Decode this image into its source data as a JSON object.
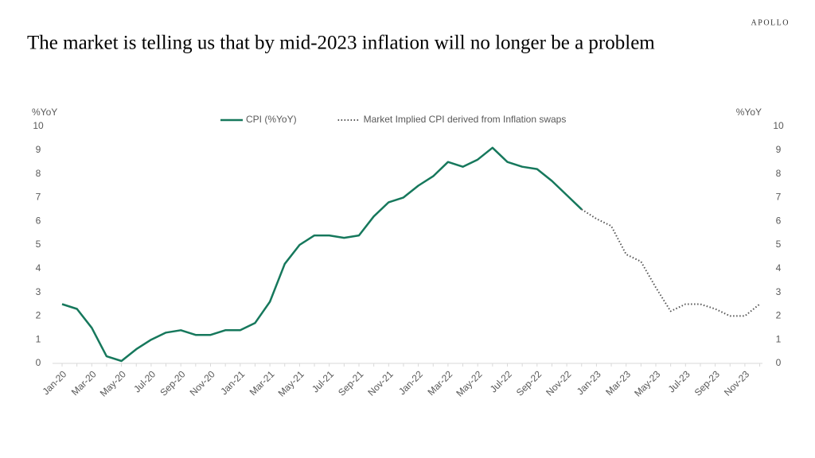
{
  "brand": "APOLLO",
  "chart_data": {
    "type": "line",
    "title": "The market is telling us that by mid-2023 inflation will no longer be a problem",
    "ylabel": "%YoY",
    "y2label": "%YoY",
    "categories": [
      "Jan-20",
      null,
      "Mar-20",
      null,
      "May-20",
      null,
      "Jul-20",
      null,
      "Sep-20",
      null,
      "Nov-20",
      null,
      "Jan-21",
      null,
      "Mar-21",
      null,
      "May-21",
      null,
      "Jul-21",
      null,
      "Sep-21",
      null,
      "Nov-21",
      null,
      "Jan-22",
      null,
      "Mar-22",
      null,
      "May-22",
      null,
      "Jul-22",
      null,
      "Sep-22",
      null,
      "Nov-22",
      null,
      "Jan-23",
      null,
      "Mar-23",
      null,
      "May-23",
      null,
      "Jul-23",
      null,
      "Sep-23",
      null,
      "Nov-23",
      null
    ],
    "series": [
      {
        "name": "CPI (%YoY)",
        "color": "#16785c",
        "style": "solid",
        "values": [
          2.5,
          2.3,
          1.5,
          0.3,
          0.1,
          0.6,
          1.0,
          1.3,
          1.4,
          1.2,
          1.2,
          1.4,
          1.4,
          1.7,
          2.6,
          4.2,
          5.0,
          5.4,
          5.4,
          5.3,
          5.4,
          6.2,
          6.8,
          7.0,
          7.5,
          7.9,
          8.5,
          8.3,
          8.6,
          9.1,
          8.5,
          8.3,
          8.2,
          7.7,
          7.1,
          6.5,
          null,
          null,
          null,
          null,
          null,
          null,
          null,
          null,
          null,
          null,
          null,
          null
        ]
      },
      {
        "name": "Market Implied CPI derived from Inflation swaps",
        "color": "#555555",
        "style": "dotted",
        "values": [
          null,
          null,
          null,
          null,
          null,
          null,
          null,
          null,
          null,
          null,
          null,
          null,
          null,
          null,
          null,
          null,
          null,
          null,
          null,
          null,
          null,
          null,
          null,
          null,
          null,
          null,
          null,
          null,
          null,
          null,
          null,
          null,
          null,
          null,
          null,
          6.5,
          6.1,
          5.8,
          4.6,
          4.3,
          3.2,
          2.2,
          2.5,
          2.5,
          2.3,
          2.0,
          2.0,
          2.5
        ]
      }
    ],
    "ylim": [
      0,
      10
    ],
    "yticks": [
      0,
      1,
      2,
      3,
      4,
      5,
      6,
      7,
      8,
      9,
      10
    ],
    "y2lim": [
      0,
      10
    ],
    "y2ticks": [
      0,
      1,
      2,
      3,
      4,
      5,
      6,
      7,
      8,
      9,
      10
    ],
    "legend": "top"
  }
}
